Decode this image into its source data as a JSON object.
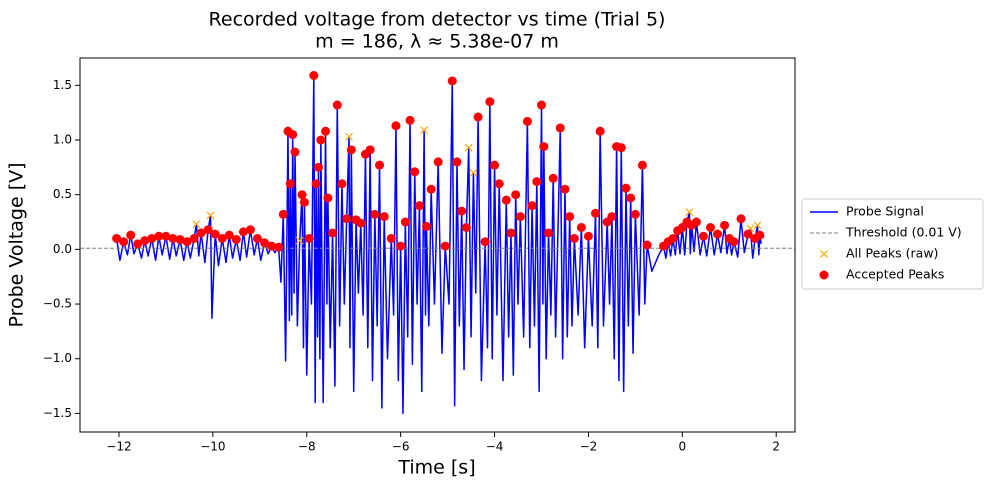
{
  "chart_data": {
    "type": "line",
    "title": [
      "Recorded voltage from detector vs time (Trial 5)",
      "m = 186, λ ≈ 5.38e-07 m"
    ],
    "xlabel": "Time [s]",
    "ylabel": "Probe Voltage [V]",
    "xlim": [
      -12.83,
      2.4
    ],
    "ylim": [
      -1.67,
      1.75
    ],
    "xticks": [
      {
        "value": -12,
        "label": "−12"
      },
      {
        "value": -10,
        "label": "−10"
      },
      {
        "value": -8,
        "label": "−8"
      },
      {
        "value": -6,
        "label": "−6"
      },
      {
        "value": -4,
        "label": "−4"
      },
      {
        "value": -2,
        "label": "−2"
      },
      0,
      2
    ],
    "yticks": [
      {
        "value": -1.5,
        "label": "−1.5"
      },
      {
        "value": -1,
        "label": "−1.0"
      },
      {
        "value": -0.5,
        "label": "−0.5"
      },
      {
        "value": 0,
        "label": "0.0"
      },
      0.5,
      {
        "value": 1,
        "label": "1.0"
      },
      1.5
    ],
    "grid": false,
    "legend": "outside right",
    "threshold": {
      "name": "Threshold (0.01 V)",
      "value": 0.01,
      "color": "#808080"
    },
    "series": [
      {
        "name": "Probe Signal",
        "color": "#0000ff",
        "marker": "none",
        "x": [
          -12.1,
          -12.05,
          -11.98,
          -11.9,
          -11.82,
          -11.75,
          -11.68,
          -11.6,
          -11.52,
          -11.45,
          -11.38,
          -11.3,
          -11.22,
          -11.15,
          -11.08,
          -11.0,
          -10.92,
          -10.85,
          -10.78,
          -10.7,
          -10.62,
          -10.55,
          -10.48,
          -10.4,
          -10.35,
          -10.3,
          -10.25,
          -10.17,
          -10.1,
          -10.05,
          -10.02,
          -9.95,
          -9.88,
          -9.8,
          -9.72,
          -9.65,
          -9.58,
          -9.5,
          -9.42,
          -9.35,
          -9.28,
          -9.2,
          -9.12,
          -9.05,
          -8.98,
          -8.9,
          -8.82,
          -8.75,
          -8.68,
          -8.6,
          -8.55,
          -8.5,
          -8.45,
          -8.4,
          -8.37,
          -8.35,
          -8.32,
          -8.3,
          -8.27,
          -8.25,
          -8.2,
          -8.15,
          -8.1,
          -8.07,
          -8.05,
          -8.0,
          -7.95,
          -7.9,
          -7.85,
          -7.82,
          -7.8,
          -7.77,
          -7.75,
          -7.72,
          -7.7,
          -7.65,
          -7.6,
          -7.57,
          -7.55,
          -7.5,
          -7.45,
          -7.4,
          -7.35,
          -7.3,
          -7.25,
          -7.2,
          -7.15,
          -7.1,
          -7.08,
          -7.05,
          -7.0,
          -6.95,
          -6.9,
          -6.85,
          -6.8,
          -6.75,
          -6.7,
          -6.65,
          -6.6,
          -6.55,
          -6.5,
          -6.45,
          -6.4,
          -6.35,
          -6.28,
          -6.2,
          -6.15,
          -6.1,
          -6.05,
          -6.0,
          -5.95,
          -5.9,
          -5.85,
          -5.8,
          -5.75,
          -5.7,
          -5.65,
          -5.6,
          -5.55,
          -5.5,
          -5.47,
          -5.45,
          -5.4,
          -5.35,
          -5.28,
          -5.2,
          -5.12,
          -5.05,
          -4.97,
          -4.9,
          -4.85,
          -4.8,
          -4.75,
          -4.7,
          -4.65,
          -4.6,
          -4.55,
          -4.5,
          -4.45,
          -4.4,
          -4.35,
          -4.28,
          -4.2,
          -4.15,
          -4.1,
          -4.05,
          -4.0,
          -3.95,
          -3.9,
          -3.82,
          -3.75,
          -3.7,
          -3.65,
          -3.6,
          -3.55,
          -3.5,
          -3.45,
          -3.38,
          -3.3,
          -3.25,
          -3.2,
          -3.15,
          -3.1,
          -3.05,
          -3.0,
          -2.97,
          -2.95,
          -2.9,
          -2.85,
          -2.8,
          -2.75,
          -2.7,
          -2.6,
          -2.55,
          -2.5,
          -2.45,
          -2.4,
          -2.35,
          -2.3,
          -2.22,
          -2.15,
          -2.08,
          -2.0,
          -1.92,
          -1.85,
          -1.8,
          -1.75,
          -1.68,
          -1.6,
          -1.55,
          -1.5,
          -1.45,
          -1.4,
          -1.35,
          -1.3,
          -1.25,
          -1.2,
          -1.15,
          -1.1,
          -1.05,
          -1.0,
          -0.92,
          -0.85,
          -0.8,
          -0.75,
          -0.65,
          -0.5,
          -0.4,
          -0.35,
          -0.3,
          -0.25,
          -0.2,
          -0.15,
          -0.1,
          -0.05,
          0,
          0.05,
          0.1,
          0.15,
          0.17,
          0.2,
          0.25,
          0.3,
          0.38,
          0.45,
          0.52,
          0.6,
          0.68,
          0.75,
          0.82,
          0.9,
          0.95,
          1,
          1.05,
          1.1,
          1.18,
          1.25,
          1.32,
          1.4,
          1.45,
          1.5,
          1.55,
          1.6,
          1.63,
          1.65,
          1.68
        ],
        "values": [
          0.08,
          0.1,
          -0.1,
          0.07,
          -0.05,
          0.13,
          -0.04,
          0.05,
          -0.08,
          0.08,
          -0.06,
          0.1,
          -0.1,
          0.12,
          -0.05,
          0.12,
          -0.09,
          0.1,
          -0.06,
          0.09,
          -0.1,
          0.07,
          -0.08,
          0.1,
          0.23,
          -0.06,
          0.15,
          -0.12,
          0.18,
          0.31,
          -0.63,
          0.14,
          -0.15,
          0.1,
          -0.12,
          0.13,
          -0.08,
          0.09,
          -0.1,
          0.16,
          -0.07,
          0.18,
          -0.05,
          0.1,
          -0.1,
          0.06,
          -0.04,
          0.03,
          -0.03,
          0.02,
          -0.3,
          0.32,
          -1.02,
          1.08,
          -0.65,
          0.6,
          -0.6,
          1.05,
          -0.4,
          0.89,
          -0.7,
          0.08,
          0.5,
          -0.9,
          0.43,
          -1.15,
          0.1,
          -0.5,
          1.59,
          -1.4,
          0.6,
          -0.8,
          0.75,
          -1.0,
          1.0,
          -1.4,
          1.08,
          -0.5,
          0.47,
          -0.9,
          0.15,
          -1.25,
          1.32,
          -0.7,
          0.6,
          -0.5,
          0.28,
          1.03,
          -0.9,
          0.91,
          -1.3,
          0.27,
          -0.4,
          0.24,
          -0.6,
          0.87,
          -0.9,
          0.91,
          -1.2,
          0.32,
          -0.7,
          0.77,
          -1.45,
          0.3,
          -1.0,
          0.1,
          -0.6,
          1.13,
          -1.2,
          0.03,
          -1.5,
          0.25,
          -0.8,
          1.18,
          -1.05,
          0.71,
          -0.5,
          0.4,
          -1.3,
          1.09,
          -0.6,
          0.21,
          -0.7,
          0.55,
          -0.5,
          0.8,
          -0.95,
          0.03,
          -0.5,
          1.54,
          -1.43,
          0.8,
          -0.7,
          0.35,
          -1.1,
          0.2,
          0.93,
          -0.8,
          0.7,
          -0.4,
          1.21,
          -1.2,
          0.07,
          -0.9,
          1.35,
          -1.0,
          0.77,
          -0.6,
          0.6,
          -1.2,
          0.45,
          -0.8,
          0.15,
          -1.15,
          0.5,
          -0.5,
          0.3,
          -0.8,
          1.17,
          -0.9,
          0.4,
          -0.7,
          0.62,
          -1.3,
          1.32,
          -0.5,
          0.94,
          -1.0,
          0.15,
          -0.6,
          0.65,
          -0.8,
          1.11,
          -1.0,
          0.55,
          -0.8,
          0.3,
          -0.7,
          0.1,
          -0.6,
          0.2,
          -0.9,
          0.12,
          -0.7,
          0.33,
          -0.9,
          1.08,
          -0.7,
          0.25,
          -0.5,
          0.3,
          -1.0,
          0.94,
          -1.2,
          0.93,
          -1.3,
          0.56,
          -0.7,
          0.47,
          -0.95,
          0.32,
          -0.6,
          0.77,
          -0.5,
          0.04,
          -0.2,
          -0.05,
          0.03,
          -0.08,
          0.07,
          -0.06,
          0.1,
          -0.05,
          0.17,
          -0.04,
          0.2,
          -0.05,
          0.25,
          0.34,
          -0.04,
          0.22,
          -0.02,
          0.25,
          -0.05,
          0.12,
          -0.06,
          0.2,
          -0.05,
          0.14,
          -0.03,
          0.22,
          -0.04,
          0.1,
          -0.05,
          0.07,
          -0.07,
          0.28,
          -0.03,
          0.14,
          0.19,
          -0.08,
          0.1,
          0.22,
          -0.05,
          0.13,
          0.05
        ]
      },
      {
        "name": "All Peaks (raw)",
        "color": "#ffa500",
        "marker": "x",
        "x": [
          -10.35,
          -10.05,
          -8.15,
          -7.1,
          -5.5,
          -4.55,
          -4.45,
          0.15,
          1.45,
          1.6
        ],
        "values": [
          0.23,
          0.31,
          0.08,
          1.03,
          1.09,
          0.93,
          0.7,
          0.34,
          0.19,
          0.22
        ]
      },
      {
        "name": "Accepted Peaks",
        "color": "#ff0000",
        "marker": "o",
        "x": [
          -12.05,
          -11.9,
          -11.75,
          -11.6,
          -11.45,
          -11.3,
          -11.15,
          -11.0,
          -10.85,
          -10.7,
          -10.55,
          -10.4,
          -10.25,
          -10.1,
          -9.95,
          -9.8,
          -9.65,
          -9.5,
          -9.35,
          -9.2,
          -9.05,
          -8.9,
          -8.75,
          -8.6,
          -8.5,
          -8.4,
          -8.35,
          -8.3,
          -8.25,
          -8.1,
          -8.05,
          -7.95,
          -7.85,
          -7.8,
          -7.75,
          -7.7,
          -7.6,
          -7.55,
          -7.45,
          -7.35,
          -7.25,
          -7.15,
          -7.05,
          -6.95,
          -6.85,
          -6.75,
          -6.65,
          -6.55,
          -6.45,
          -6.35,
          -6.2,
          -6.1,
          -6.0,
          -5.9,
          -5.8,
          -5.7,
          -5.6,
          -5.45,
          -5.35,
          -5.2,
          -5.05,
          -4.9,
          -4.8,
          -4.7,
          -4.6,
          -4.35,
          -4.2,
          -4.1,
          -4.0,
          -3.9,
          -3.75,
          -3.65,
          -3.55,
          -3.45,
          -3.3,
          -3.2,
          -3.1,
          -3.0,
          -2.95,
          -2.85,
          -2.75,
          -2.6,
          -2.5,
          -2.4,
          -2.3,
          -2.15,
          -2.0,
          -1.85,
          -1.75,
          -1.6,
          -1.5,
          -1.4,
          -1.3,
          -1.2,
          -1.1,
          -1.0,
          -0.85,
          -0.75,
          -0.4,
          -0.3,
          -0.2,
          -0.1,
          0,
          0.1,
          0.2,
          0.3,
          0.45,
          0.6,
          0.75,
          0.9,
          1,
          1.1,
          1.25,
          1.4,
          1.55,
          1.65
        ],
        "values": [
          0.1,
          0.07,
          0.13,
          0.05,
          0.08,
          0.1,
          0.12,
          0.12,
          0.1,
          0.09,
          0.07,
          0.1,
          0.15,
          0.18,
          0.14,
          0.1,
          0.13,
          0.09,
          0.16,
          0.18,
          0.1,
          0.06,
          0.03,
          0.02,
          0.32,
          1.08,
          0.6,
          1.05,
          0.89,
          0.5,
          0.43,
          0.1,
          1.59,
          0.6,
          0.75,
          1.0,
          1.08,
          0.47,
          0.15,
          1.32,
          0.6,
          0.28,
          0.91,
          0.27,
          0.24,
          0.87,
          0.91,
          0.32,
          0.77,
          0.3,
          0.1,
          1.13,
          0.03,
          0.25,
          1.18,
          0.71,
          0.4,
          0.21,
          0.55,
          0.8,
          0.03,
          1.54,
          0.8,
          0.35,
          0.2,
          1.21,
          0.07,
          1.35,
          0.77,
          0.6,
          0.45,
          0.15,
          0.5,
          0.3,
          1.17,
          0.4,
          0.62,
          1.32,
          0.94,
          0.15,
          0.65,
          1.11,
          0.55,
          0.3,
          0.1,
          0.2,
          0.12,
          0.33,
          1.08,
          0.25,
          0.3,
          0.94,
          0.93,
          0.56,
          0.47,
          0.32,
          0.77,
          0.04,
          0.03,
          0.07,
          0.1,
          0.17,
          0.2,
          0.25,
          0.22,
          0.25,
          0.12,
          0.2,
          0.14,
          0.22,
          0.1,
          0.07,
          0.28,
          0.14,
          0.1,
          0.13
        ]
      }
    ]
  }
}
